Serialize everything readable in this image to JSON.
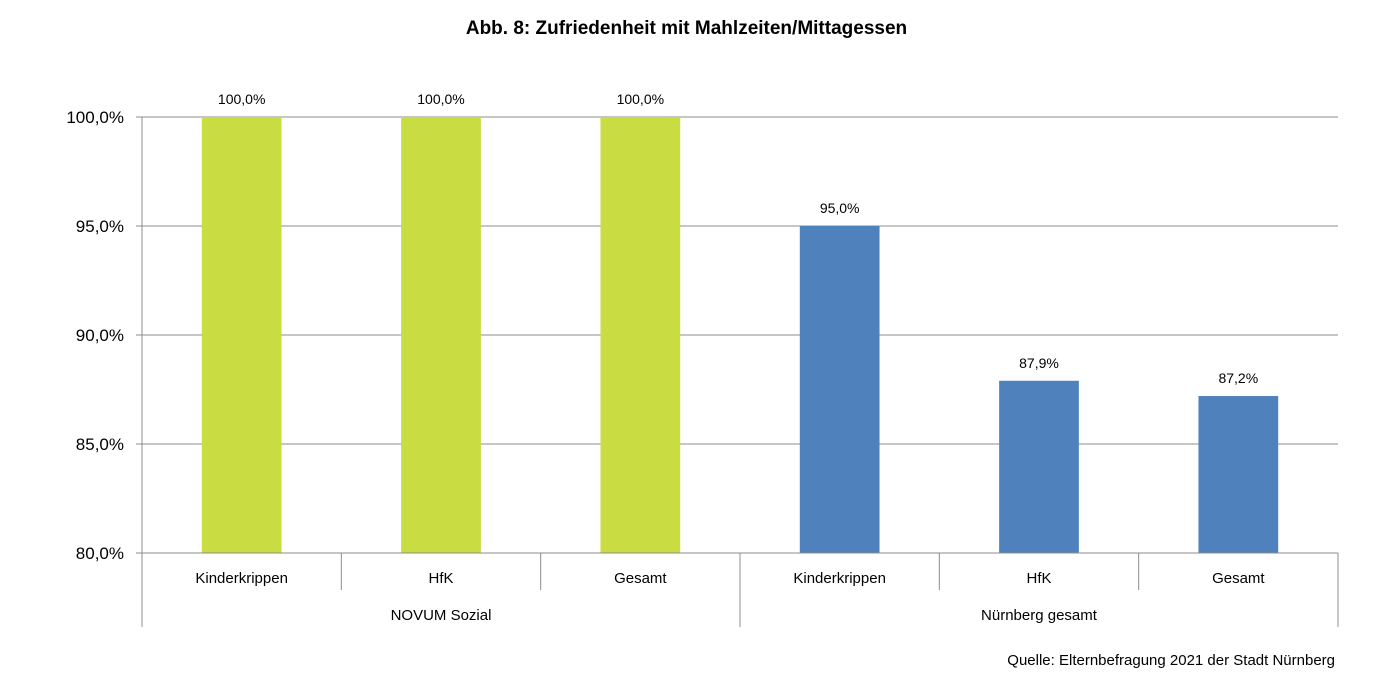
{
  "chart_data": {
    "type": "bar",
    "title": "Abb. 8: Zufriedenheit mit Mahlzeiten/Mittagessen",
    "xlabel": "",
    "ylabel": "",
    "ylim": [
      80,
      100
    ],
    "yticks": [
      80,
      85,
      90,
      95,
      100
    ],
    "ytick_labels": [
      "80,0%",
      "85,0%",
      "90,0%",
      "95,0%",
      "100,0%"
    ],
    "grid": true,
    "legend": "none",
    "groups": [
      {
        "name": "NOVUM Sozial",
        "color": "#c9dc41",
        "categories": [
          "Kinderkrippen",
          "HfK",
          "Gesamt"
        ],
        "values": [
          100.0,
          100.0,
          100.0
        ],
        "value_labels": [
          "100,0%",
          "100,0%",
          "100,0%"
        ]
      },
      {
        "name": "Nürnberg gesamt",
        "color": "#4f81bd",
        "categories": [
          "Kinderkrippen",
          "HfK",
          "Gesamt"
        ],
        "values": [
          95.0,
          87.9,
          87.2
        ],
        "value_labels": [
          "95,0%",
          "87,9%",
          "87,2%"
        ]
      }
    ],
    "source": "Quelle: Elternbefragung 2021 der Stadt Nürnberg"
  }
}
